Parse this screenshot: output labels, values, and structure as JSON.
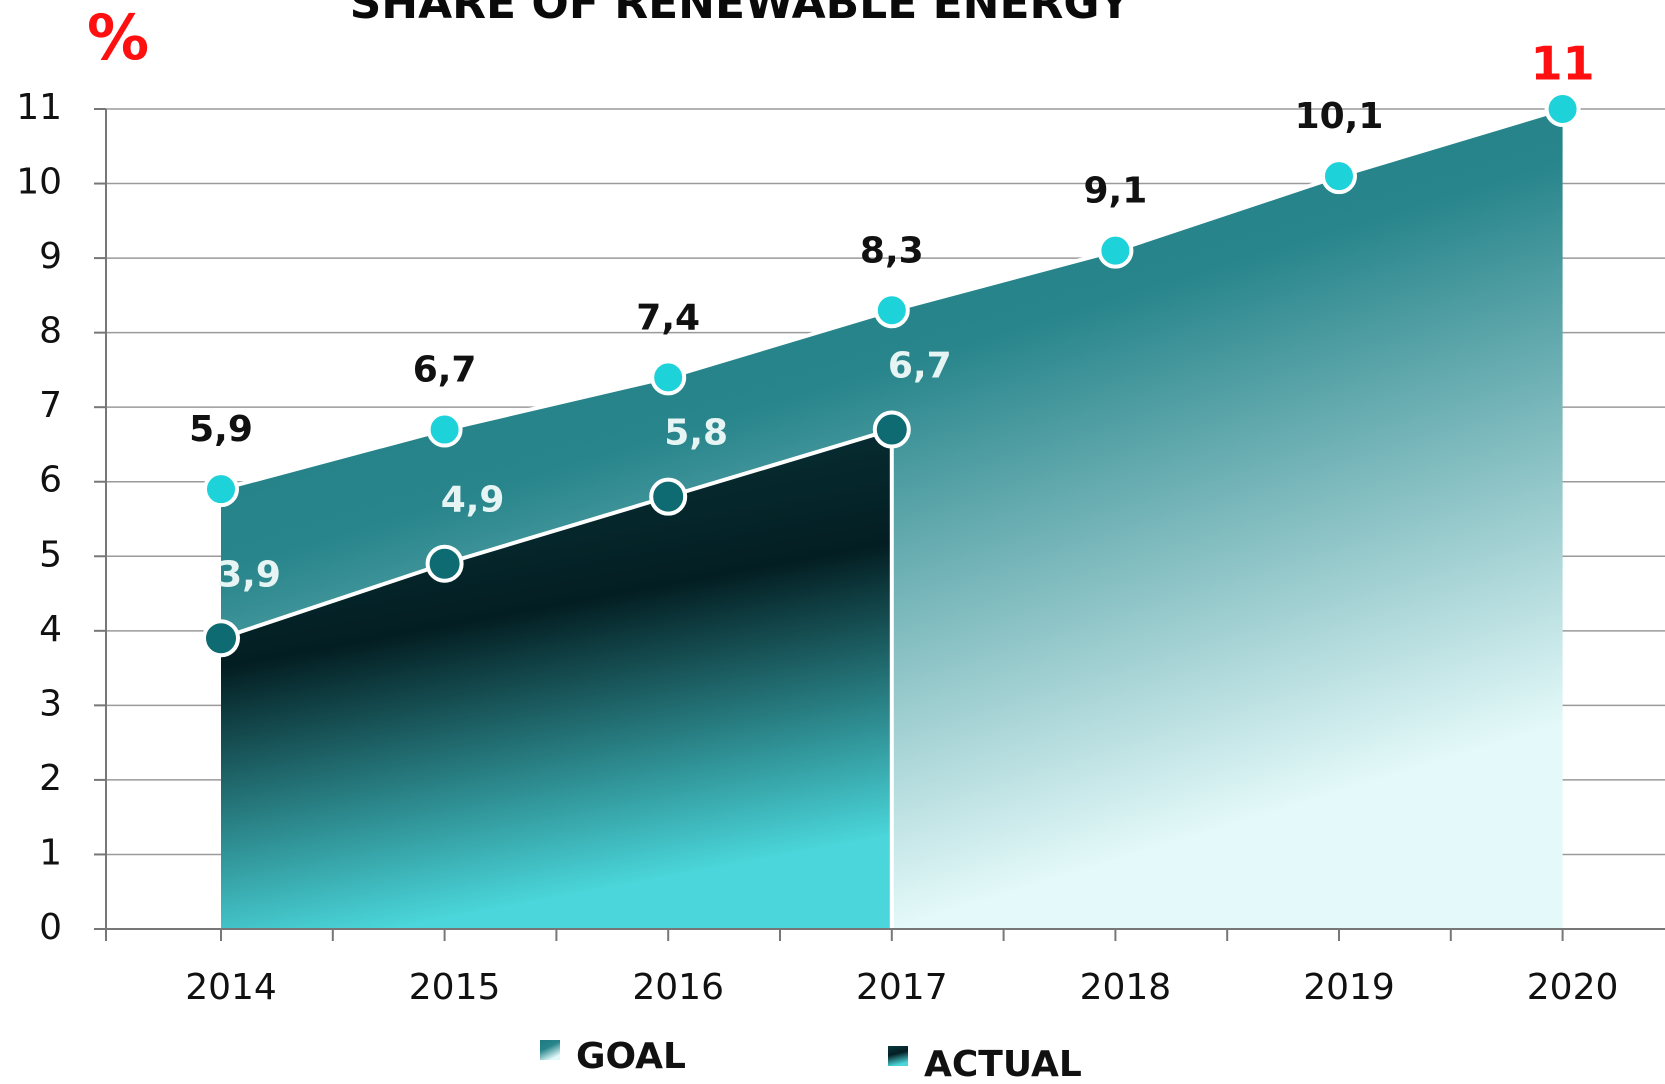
{
  "chart_data": {
    "type": "area",
    "title": "SHARE OF RENEWABLE ENERGY",
    "y_label": "%",
    "categories": [
      "2014",
      "2015",
      "2016",
      "2017",
      "2018",
      "2019",
      "2020"
    ],
    "series": [
      {
        "name": "GOAL",
        "color": "#1f7a80",
        "values": [
          5.9,
          6.7,
          7.4,
          8.3,
          9.1,
          10.1,
          11
        ],
        "value_labels": [
          "5,9",
          "6,7",
          "7,4",
          "8,3",
          "9,1",
          "10,1",
          "11"
        ]
      },
      {
        "name": "ACTUAL",
        "color": "#06292e",
        "values": [
          3.9,
          4.9,
          5.8,
          6.7,
          null,
          null,
          null
        ],
        "value_labels": [
          "3,9",
          "4,9",
          "5,8",
          "6,7",
          null,
          null,
          null
        ]
      }
    ],
    "ylim": [
      0,
      11
    ],
    "yticks": [
      0,
      1,
      2,
      3,
      4,
      5,
      6,
      7,
      8,
      9,
      10,
      11
    ],
    "grid": true
  }
}
